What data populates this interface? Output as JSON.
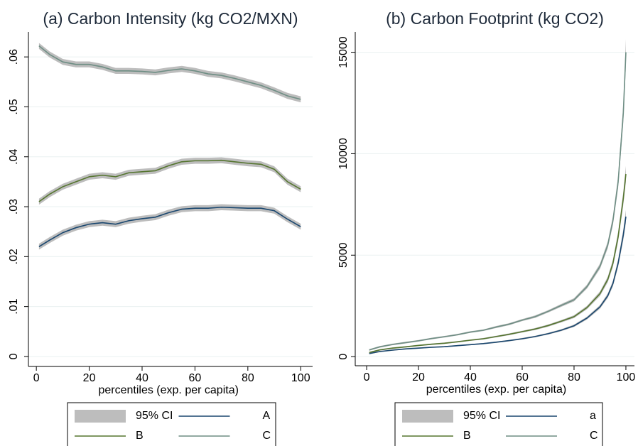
{
  "chart_data": [
    {
      "type": "line",
      "title": "(a) Carbon Intensity (kg CO2/MXN)",
      "xlabel": "percentiles (exp. per capita)",
      "x": [
        1,
        5,
        10,
        15,
        20,
        25,
        30,
        35,
        40,
        45,
        50,
        55,
        60,
        65,
        70,
        75,
        80,
        85,
        90,
        95,
        100
      ],
      "ci_label": "95% CI",
      "ci_color": "#bdbdbd",
      "legend": "bottom",
      "grid": true,
      "series": [
        {
          "name": "A",
          "color": "#1a476f",
          "values": [
            0.022,
            0.0233,
            0.0248,
            0.0258,
            0.0265,
            0.0268,
            0.0265,
            0.0272,
            0.0276,
            0.0279,
            0.0288,
            0.0295,
            0.0297,
            0.0297,
            0.0299,
            0.0298,
            0.0297,
            0.0297,
            0.0292,
            0.0275,
            0.026
          ],
          "ci": 0.0006
        },
        {
          "name": "B",
          "color": "#55752f",
          "values": [
            0.031,
            0.0325,
            0.034,
            0.035,
            0.036,
            0.0363,
            0.036,
            0.0368,
            0.037,
            0.0372,
            0.0382,
            0.039,
            0.0392,
            0.0392,
            0.0393,
            0.039,
            0.0387,
            0.0385,
            0.0375,
            0.035,
            0.0335
          ],
          "ci": 0.0006
        },
        {
          "name": "C",
          "color": "#6e8e84",
          "values": [
            0.0622,
            0.0605,
            0.059,
            0.0585,
            0.0585,
            0.058,
            0.0572,
            0.0572,
            0.0571,
            0.0569,
            0.0573,
            0.0576,
            0.0572,
            0.0566,
            0.0563,
            0.0557,
            0.055,
            0.0543,
            0.0533,
            0.0522,
            0.0515
          ],
          "ci": 0.0006
        }
      ],
      "xlim": [
        -3,
        104.5
      ],
      "xticks": [
        0,
        20,
        40,
        60,
        80,
        100
      ],
      "ylim": [
        -0.002,
        0.065
      ],
      "yticks": [
        0,
        {
          "value": 0.01,
          "label": ".01"
        },
        {
          "value": 0.02,
          "label": ".02"
        },
        {
          "value": 0.03,
          "label": ".03"
        },
        {
          "value": 0.04,
          "label": ".04"
        },
        {
          "value": 0.05,
          "label": ".05"
        },
        {
          "value": 0.06,
          "label": ".06"
        }
      ]
    },
    {
      "type": "line",
      "title": "(b) Carbon Footprint (kg CO2)",
      "xlabel": "percentiles (exp. per capita)",
      "x": [
        1,
        5,
        10,
        15,
        20,
        25,
        30,
        35,
        40,
        45,
        50,
        55,
        60,
        65,
        70,
        75,
        80,
        85,
        90,
        93,
        95,
        97,
        99,
        100
      ],
      "ci_label": "95% CI",
      "ci_color": "#bdbdbd",
      "legend": "bottom",
      "grid": true,
      "series": [
        {
          "name": "a",
          "color": "#1a476f",
          "values": [
            150,
            250,
            320,
            380,
            420,
            460,
            490,
            540,
            590,
            640,
            710,
            790,
            880,
            990,
            1130,
            1300,
            1520,
            1900,
            2450,
            3000,
            3600,
            4600,
            6000,
            6900
          ],
          "ci": [
            30,
            30,
            30,
            30,
            30,
            30,
            30,
            30,
            30,
            30,
            35,
            35,
            40,
            40,
            45,
            50,
            60,
            70,
            90,
            110,
            140,
            190,
            260,
            330
          ]
        },
        {
          "name": "B",
          "color": "#55752f",
          "values": [
            200,
            330,
            420,
            480,
            550,
            610,
            660,
            730,
            810,
            880,
            990,
            1100,
            1230,
            1360,
            1530,
            1740,
            1970,
            2420,
            3100,
            3800,
            4600,
            5900,
            7800,
            9000
          ],
          "ci": [
            35,
            35,
            35,
            35,
            35,
            35,
            35,
            35,
            35,
            40,
            40,
            45,
            45,
            50,
            55,
            60,
            70,
            85,
            110,
            140,
            180,
            240,
            320,
            400
          ]
        },
        {
          "name": "C",
          "color": "#6e8e84",
          "values": [
            330,
            480,
            600,
            690,
            780,
            890,
            980,
            1080,
            1210,
            1300,
            1460,
            1600,
            1800,
            1970,
            2230,
            2520,
            2800,
            3450,
            4450,
            5500,
            6700,
            8600,
            12000,
            15000
          ],
          "ci": [
            40,
            40,
            40,
            40,
            40,
            40,
            40,
            40,
            40,
            40,
            50,
            50,
            50,
            60,
            60,
            70,
            80,
            100,
            130,
            170,
            220,
            300,
            450,
            650
          ]
        }
      ],
      "xlim": [
        -4.4,
        103.3
      ],
      "xticks": [
        0,
        20,
        40,
        60,
        80,
        100
      ],
      "ylim": [
        -450,
        16000
      ],
      "yticks": [
        0,
        5000,
        10000,
        15000
      ]
    }
  ]
}
